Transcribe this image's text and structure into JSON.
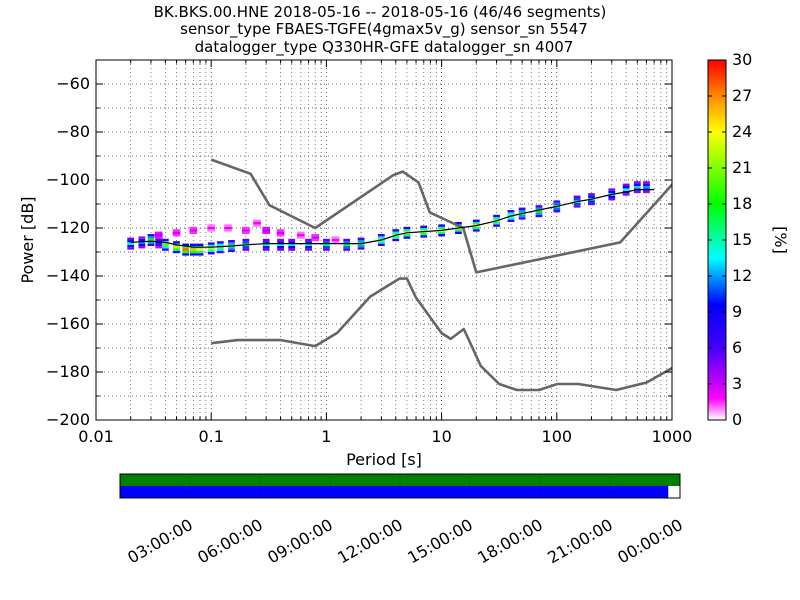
{
  "header": {
    "line1": "BK.BKS.00.HNE   2018-05-16 -- 2018-05-16  (46/46 segments)",
    "line2": "sensor_type FBAES-TGFE(4gmax5v_g) sensor_sn 5547",
    "line3": "datalogger_type Q330HR-GFE datalogger_sn 4007"
  },
  "chart_data": [
    {
      "type": "heatmap",
      "subtype": "probabilistic-power-spectral-density",
      "xlabel": "Period [s]",
      "ylabel": "Power [dB]",
      "xscale": "log",
      "xlim": [
        0.01,
        1000
      ],
      "ylim": [
        -200,
        -50
      ],
      "xticks": [
        "0.01",
        "0.1",
        "1",
        "10",
        "100",
        "1000"
      ],
      "yticks": [
        "−200",
        "−180",
        "−160",
        "−140",
        "−120",
        "−100",
        "−80",
        "−60"
      ],
      "grid": true,
      "colorbar": {
        "label": "[%]",
        "range": [
          0,
          30
        ],
        "ticks": [
          "0",
          "3",
          "6",
          "9",
          "12",
          "15",
          "18",
          "21",
          "24",
          "27",
          "30"
        ],
        "colormap": [
          "#ffffff",
          "#ff00ff",
          "#0000ff",
          "#00ffff",
          "#00ff00",
          "#ffff00",
          "#ff0000"
        ]
      },
      "pdf_bands": [
        {
          "period": 0.02,
          "power": -126.5,
          "percent": 15
        },
        {
          "period": 0.025,
          "power": -126,
          "percent": 12
        },
        {
          "period": 0.03,
          "power": -125,
          "percent": 18
        },
        {
          "period": 0.035,
          "power": -126,
          "percent": 9
        },
        {
          "period": 0.04,
          "power": -127,
          "percent": 20
        },
        {
          "period": 0.05,
          "power": -128,
          "percent": 25
        },
        {
          "period": 0.06,
          "power": -129,
          "percent": 28
        },
        {
          "period": 0.07,
          "power": -129,
          "percent": 26
        },
        {
          "period": 0.08,
          "power": -129,
          "percent": 24
        },
        {
          "period": 0.1,
          "power": -128.5,
          "percent": 22
        },
        {
          "period": 0.12,
          "power": -128,
          "percent": 20
        },
        {
          "period": 0.15,
          "power": -127.5,
          "percent": 18
        },
        {
          "period": 0.2,
          "power": -127,
          "percent": 16
        },
        {
          "period": 0.3,
          "power": -127,
          "percent": 15
        },
        {
          "period": 0.4,
          "power": -127,
          "percent": 14
        },
        {
          "period": 0.5,
          "power": -127,
          "percent": 14
        },
        {
          "period": 0.7,
          "power": -127,
          "percent": 15
        },
        {
          "period": 1,
          "power": -127,
          "percent": 16
        },
        {
          "period": 1.5,
          "power": -127,
          "percent": 17
        },
        {
          "period": 2,
          "power": -126.5,
          "percent": 18
        },
        {
          "period": 3,
          "power": -125,
          "percent": 20
        },
        {
          "period": 4,
          "power": -123,
          "percent": 22
        },
        {
          "period": 5,
          "power": -122,
          "percent": 24
        },
        {
          "period": 7,
          "power": -121.5,
          "percent": 24
        },
        {
          "period": 10,
          "power": -121,
          "percent": 24
        },
        {
          "period": 14,
          "power": -120,
          "percent": 24
        },
        {
          "period": 20,
          "power": -119,
          "percent": 24
        },
        {
          "period": 30,
          "power": -117,
          "percent": 22
        },
        {
          "period": 40,
          "power": -115,
          "percent": 20
        },
        {
          "period": 50,
          "power": -114,
          "percent": 18
        },
        {
          "period": 70,
          "power": -113,
          "percent": 18
        },
        {
          "period": 100,
          "power": -111,
          "percent": 17
        },
        {
          "period": 150,
          "power": -109,
          "percent": 16
        },
        {
          "period": 200,
          "power": -108,
          "percent": 15
        },
        {
          "period": 300,
          "power": -106,
          "percent": 14
        },
        {
          "period": 400,
          "power": -104,
          "percent": 14
        },
        {
          "period": 500,
          "power": -103,
          "percent": 13
        },
        {
          "period": 600,
          "power": -103,
          "percent": 12
        }
      ],
      "scatter_low": [
        {
          "period": 0.035,
          "power": -123,
          "percent": 4
        },
        {
          "period": 0.05,
          "power": -122,
          "percent": 3
        },
        {
          "period": 0.07,
          "power": -121,
          "percent": 3
        },
        {
          "period": 0.1,
          "power": -120,
          "percent": 2
        },
        {
          "period": 0.14,
          "power": -120,
          "percent": 2
        },
        {
          "period": 0.2,
          "power": -121,
          "percent": 3
        },
        {
          "period": 0.25,
          "power": -118,
          "percent": 2
        },
        {
          "period": 0.3,
          "power": -121,
          "percent": 4
        },
        {
          "period": 0.4,
          "power": -122,
          "percent": 3
        },
        {
          "period": 0.6,
          "power": -123,
          "percent": 2
        },
        {
          "period": 0.8,
          "power": -124,
          "percent": 3
        },
        {
          "period": 1.2,
          "power": -125,
          "percent": 2
        }
      ],
      "mean_curve": {
        "period": [
          0.02,
          0.03,
          0.04,
          0.05,
          0.07,
          0.1,
          0.15,
          0.2,
          0.3,
          0.5,
          0.7,
          1,
          1.5,
          2,
          3,
          4,
          5,
          7,
          10,
          14,
          20,
          30,
          40,
          50,
          70,
          100,
          150,
          200,
          300,
          400,
          500,
          700
        ],
        "power": [
          -126,
          -125.5,
          -126,
          -127,
          -128,
          -128,
          -127.5,
          -127,
          -126.5,
          -126.5,
          -126.5,
          -126.5,
          -126.5,
          -126.5,
          -125,
          -123,
          -122,
          -121.5,
          -121,
          -120,
          -119,
          -117,
          -115,
          -114,
          -112.5,
          -111,
          -109,
          -108,
          -106,
          -105,
          -104,
          -104
        ]
      },
      "nhnm": {
        "period": [
          0.1,
          0.22,
          0.32,
          0.8,
          3.8,
          4.6,
          6.3,
          7.9,
          15.4,
          20,
          354.8,
          10000
        ],
        "power": [
          -91.5,
          -97.4,
          -110.5,
          -120,
          -98,
          -96.5,
          -101,
          -113.5,
          -120,
          -138.5,
          -126,
          -48.5
        ]
      },
      "nlnm": {
        "period": [
          0.1,
          0.17,
          0.4,
          0.8,
          1.24,
          2.4,
          4.3,
          5,
          6,
          10,
          12,
          15.6,
          21.9,
          31.6,
          45,
          70,
          101,
          154,
          328,
          600,
          10000
        ],
        "power": [
          -168,
          -166.7,
          -166.7,
          -169.2,
          -163.7,
          -148.6,
          -141.1,
          -141.1,
          -149,
          -163.8,
          -166.2,
          -162.1,
          -177.5,
          -185,
          -187.5,
          -187.5,
          -185,
          -185,
          -187.5,
          -184.4,
          -151.3
        ]
      }
    },
    {
      "type": "timeline",
      "description": "data coverage bars",
      "time_ticks": [
        "03:00:00",
        "06:00:00",
        "09:00:00",
        "12:00:00",
        "15:00:00",
        "18:00:00",
        "21:00:00",
        "00:00:00"
      ],
      "series": [
        {
          "color": "#008000",
          "coverage": [
            0.0,
            1.0
          ]
        },
        {
          "color": "#0000ff",
          "coverage": [
            0.0,
            0.979
          ]
        }
      ]
    }
  ]
}
